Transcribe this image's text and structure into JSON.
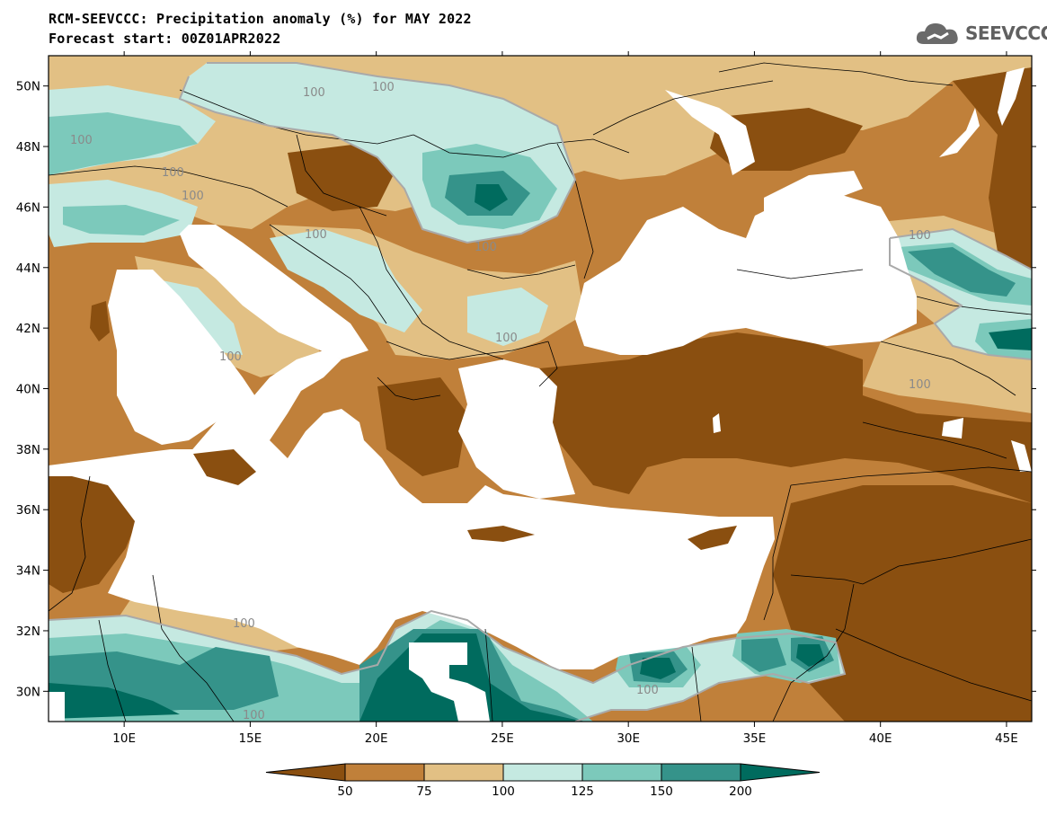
{
  "title": {
    "line1": "RCM-SEEVCCC: Precipitation anomaly (%) for MAY 2022",
    "line2": "Forecast start: 00Z01APR2022"
  },
  "logo": {
    "text": "SEEVCCC",
    "icon": "cloud-icon"
  },
  "map": {
    "variable": "Precipitation anomaly (%)",
    "month": "MAY 2022",
    "forecast_start": "00Z01APR2022",
    "lon_range": [
      7,
      46
    ],
    "lat_range": [
      29,
      51
    ],
    "x_ticks": [
      "10E",
      "15E",
      "20E",
      "25E",
      "30E",
      "35E",
      "40E",
      "45E"
    ],
    "y_ticks": [
      "50N",
      "48N",
      "46N",
      "44N",
      "42N",
      "40N",
      "38N",
      "36N",
      "34N",
      "32N",
      "30N"
    ],
    "contour_label": "100"
  },
  "colorbar": {
    "labels": [
      "50",
      "75",
      "100",
      "125",
      "150",
      "200"
    ],
    "colors": [
      "#8a4f10",
      "#c0803a",
      "#e2c084",
      "#c5e9e1",
      "#7cc9bb",
      "#35938a",
      "#006b5e"
    ]
  },
  "colors": {
    "dry_strong": "#8a4f10",
    "dry": "#c0803a",
    "dry_light": "#e2c084",
    "wet_light": "#c5e9e1",
    "wet": "#7cc9bb",
    "wet_strong": "#35938a",
    "wet_extreme": "#006b5e"
  }
}
